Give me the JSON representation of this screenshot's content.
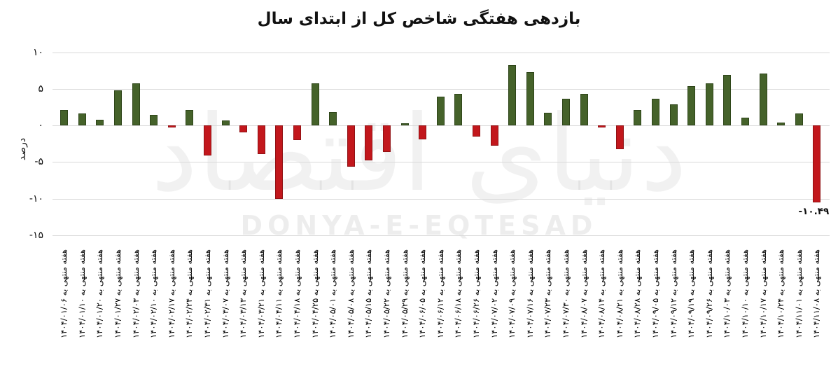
{
  "title": "بازدهی هفتگی شاخص کل از ابتدای سال",
  "watermark": {
    "persian": "دنیای اقتصاد",
    "latin": "DONYA-E-EQTESAD"
  },
  "chart_data": {
    "type": "bar",
    "title": "بازدهی هفتگی شاخص کل از ابتدای سال",
    "xlabel": "",
    "ylabel": "درصد",
    "x_label_prefix": "هفته منتهی به",
    "categories": [
      "۱۴۰۴/۰۱/۰۶",
      "۱۴۰۴/۰۱/۱۰",
      "۱۴۰۴/۰۱/۲۰",
      "۱۴۰۴/۰۱/۲۷",
      "۱۴۰۴/۰۲/۰۳",
      "۱۴۰۴/۰۲/۱۰",
      "۱۴۰۴/۰۲/۱۷",
      "۱۴۰۴/۰۲/۲۴",
      "۱۴۰۴/۰۲/۳۱",
      "۱۴۰۴/۰۳/۰۷",
      "۱۴۰۴/۰۳/۱۳",
      "۱۴۰۴/۰۳/۲۱",
      "۱۴۰۴/۰۴/۱۱",
      "۱۴۰۴/۰۴/۱۸",
      "۱۴۰۴/۰۴/۲۵",
      "۱۴۰۴/۰۵/۰۱",
      "۱۴۰۴/۰۵/۰۸",
      "۱۴۰۴/۰۵/۱۵",
      "۱۴۰۴/۰۵/۲۲",
      "۱۴۰۴/۰۵/۲۹",
      "۱۴۰۴/۰۶/۰۵",
      "۱۴۰۴/۰۶/۱۲",
      "۱۴۰۴/۰۶/۱۸",
      "۱۴۰۴/۰۶/۲۶",
      "۱۴۰۴/۰۷/۰۲",
      "۱۴۰۴/۰۷/۰۹",
      "۱۴۰۴/۰۷/۱۶",
      "۱۴۰۴/۰۷/۲۳",
      "۱۴۰۴/۰۷/۳۰",
      "۱۴۰۴/۰۸/۰۷",
      "۱۴۰۴/۰۸/۱۴",
      "۱۴۰۴/۰۸/۲۱",
      "۱۴۰۴/۰۸/۲۸",
      "۱۴۰۴/۰۹/۰۵",
      "۱۴۰۴/۰۹/۱۲",
      "۱۴۰۴/۰۹/۱۹",
      "۱۴۰۴/۰۹/۲۶",
      "۱۴۰۴/۱۰/۰۳",
      "۱۴۰۴/۱۰/۱۰",
      "۱۴۰۴/۱۰/۱۷",
      "۱۴۰۴/۱۰/۲۴",
      "۱۴۰۴/۱۱/۰۱",
      "۱۴۰۴/۱۱/۰۸"
    ],
    "values": [
      2.1,
      1.6,
      0.8,
      4.8,
      5.7,
      1.4,
      -0.3,
      2.1,
      -4.1,
      0.7,
      -1.0,
      -3.9,
      -10.0,
      -2.0,
      5.7,
      1.8,
      -5.6,
      -4.8,
      -3.6,
      0.3,
      -1.9,
      3.9,
      4.3,
      -1.5,
      -2.8,
      8.2,
      7.3,
      1.7,
      3.6,
      4.3,
      -0.3,
      -3.3,
      2.1,
      3.6,
      2.9,
      5.4,
      5.7,
      6.9,
      1.1,
      7.1,
      0.4,
      1.6,
      -10.49
    ],
    "yticks": [
      {
        "value": 10,
        "label": "۱۰"
      },
      {
        "value": 5,
        "label": "۵"
      },
      {
        "value": 0,
        "label": "۰"
      },
      {
        "value": -5,
        "label": "-۵"
      },
      {
        "value": -10,
        "label": "-۱۰"
      },
      {
        "value": -15,
        "label": "-۱۵"
      }
    ],
    "ylim": [
      -15.5,
      11.4
    ],
    "grid": "horizontal",
    "legend": "none",
    "annotation": {
      "index": 42,
      "label": "-۱۰.۴۹"
    },
    "colors": {
      "positive": "#45622a",
      "positive_border": "#2e4519",
      "negative": "#c2171c",
      "negative_border": "#911114",
      "gridline": "#d9d9d9"
    }
  }
}
